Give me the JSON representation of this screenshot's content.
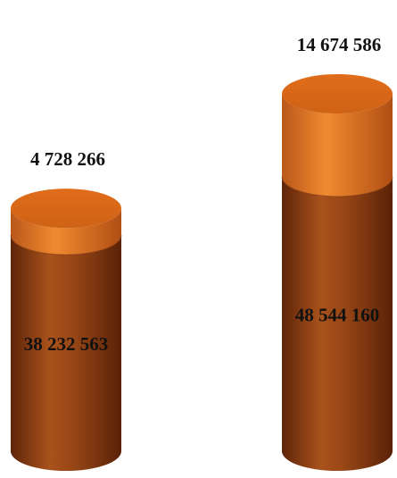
{
  "chart_data": {
    "type": "bar",
    "style": "stacked-3d-cylinder",
    "categories": [
      "",
      ""
    ],
    "series": [
      {
        "values": [
          38232563,
          48544160
        ],
        "color": "#8B3A0E"
      },
      {
        "values": [
          4728266,
          14674586
        ],
        "color": "#E0731C"
      }
    ],
    "value_labels": {
      "bottom": [
        "38 232 563",
        "48 544 160"
      ],
      "top": [
        "4 728 266",
        "14 674 586"
      ]
    },
    "title": "",
    "xlabel": "",
    "ylabel": "",
    "grid": false,
    "legend": "none"
  }
}
